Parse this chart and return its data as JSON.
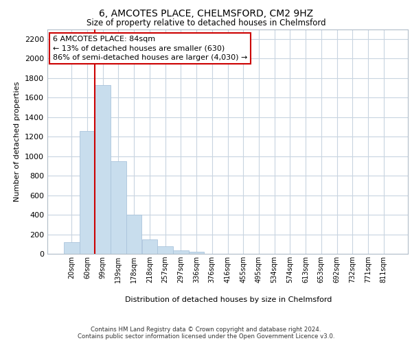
{
  "title": "6, AMCOTES PLACE, CHELMSFORD, CM2 9HZ",
  "subtitle": "Size of property relative to detached houses in Chelmsford",
  "xlabel": "Distribution of detached houses by size in Chelmsford",
  "ylabel": "Number of detached properties",
  "categories": [
    "20sqm",
    "60sqm",
    "99sqm",
    "139sqm",
    "178sqm",
    "218sqm",
    "257sqm",
    "297sqm",
    "336sqm",
    "376sqm",
    "416sqm",
    "455sqm",
    "495sqm",
    "534sqm",
    "574sqm",
    "613sqm",
    "653sqm",
    "692sqm",
    "732sqm",
    "771sqm",
    "811sqm"
  ],
  "values": [
    120,
    1260,
    1730,
    950,
    400,
    150,
    75,
    35,
    20,
    0,
    0,
    0,
    0,
    0,
    0,
    0,
    0,
    0,
    0,
    0,
    0
  ],
  "bar_color": "#c8dded",
  "bar_edge_color": "#aac4dc",
  "grid_color": "#c8d4e0",
  "marker_line_color": "#cc0000",
  "annotation_text": "6 AMCOTES PLACE: 84sqm\n← 13% of detached houses are smaller (630)\n86% of semi-detached houses are larger (4,030) →",
  "annotation_box_color": "#ffffff",
  "annotation_box_edge": "#cc0000",
  "ylim": [
    0,
    2300
  ],
  "yticks": [
    0,
    200,
    400,
    600,
    800,
    1000,
    1200,
    1400,
    1600,
    1800,
    2000,
    2200
  ],
  "footer_line1": "Contains HM Land Registry data © Crown copyright and database right 2024.",
  "footer_line2": "Contains public sector information licensed under the Open Government Licence v3.0."
}
